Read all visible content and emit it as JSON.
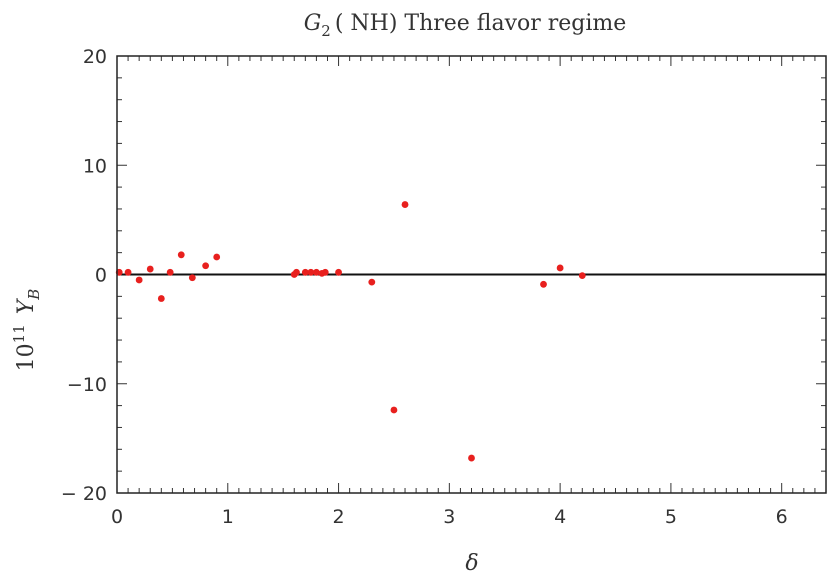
{
  "chart_data": {
    "type": "scatter",
    "title_parts": {
      "g": "G",
      "sub": "2",
      "rest": "( NH)  Three  flavor  regime"
    },
    "xlabel": "δ",
    "ylabel_parts": {
      "base": "10",
      "exp": "11",
      "var": "Y",
      "sub": "B"
    },
    "xlim": [
      0,
      6.4
    ],
    "ylim": [
      -20,
      20
    ],
    "x_ticks": [
      0,
      1,
      2,
      3,
      4,
      5,
      6
    ],
    "y_ticks": [
      -20,
      -10,
      0,
      10,
      20
    ],
    "y_tick_labels": [
      "− 20",
      "−10",
      "0",
      "10",
      "20"
    ],
    "grid": false,
    "reference_line_y": 0,
    "point_color": "#e8201e",
    "series": [
      {
        "points": [
          [
            0.02,
            0.2
          ],
          [
            0.1,
            0.2
          ],
          [
            0.2,
            -0.5
          ],
          [
            0.3,
            0.5
          ],
          [
            0.4,
            -2.2
          ],
          [
            0.48,
            0.2
          ],
          [
            0.58,
            1.8
          ],
          [
            0.68,
            -0.3
          ],
          [
            0.8,
            0.8
          ],
          [
            0.9,
            1.6
          ],
          [
            1.6,
            0.0
          ],
          [
            1.62,
            0.2
          ],
          [
            1.7,
            0.2
          ],
          [
            1.75,
            0.2
          ],
          [
            1.8,
            0.2
          ],
          [
            1.85,
            0.1
          ],
          [
            1.88,
            0.2
          ],
          [
            2.0,
            0.2
          ],
          [
            2.3,
            -0.7
          ],
          [
            2.5,
            -12.4
          ],
          [
            2.6,
            6.4
          ],
          [
            3.2,
            -16.8
          ],
          [
            3.85,
            -0.9
          ],
          [
            4.0,
            0.6
          ],
          [
            4.2,
            -0.1
          ]
        ]
      }
    ]
  }
}
